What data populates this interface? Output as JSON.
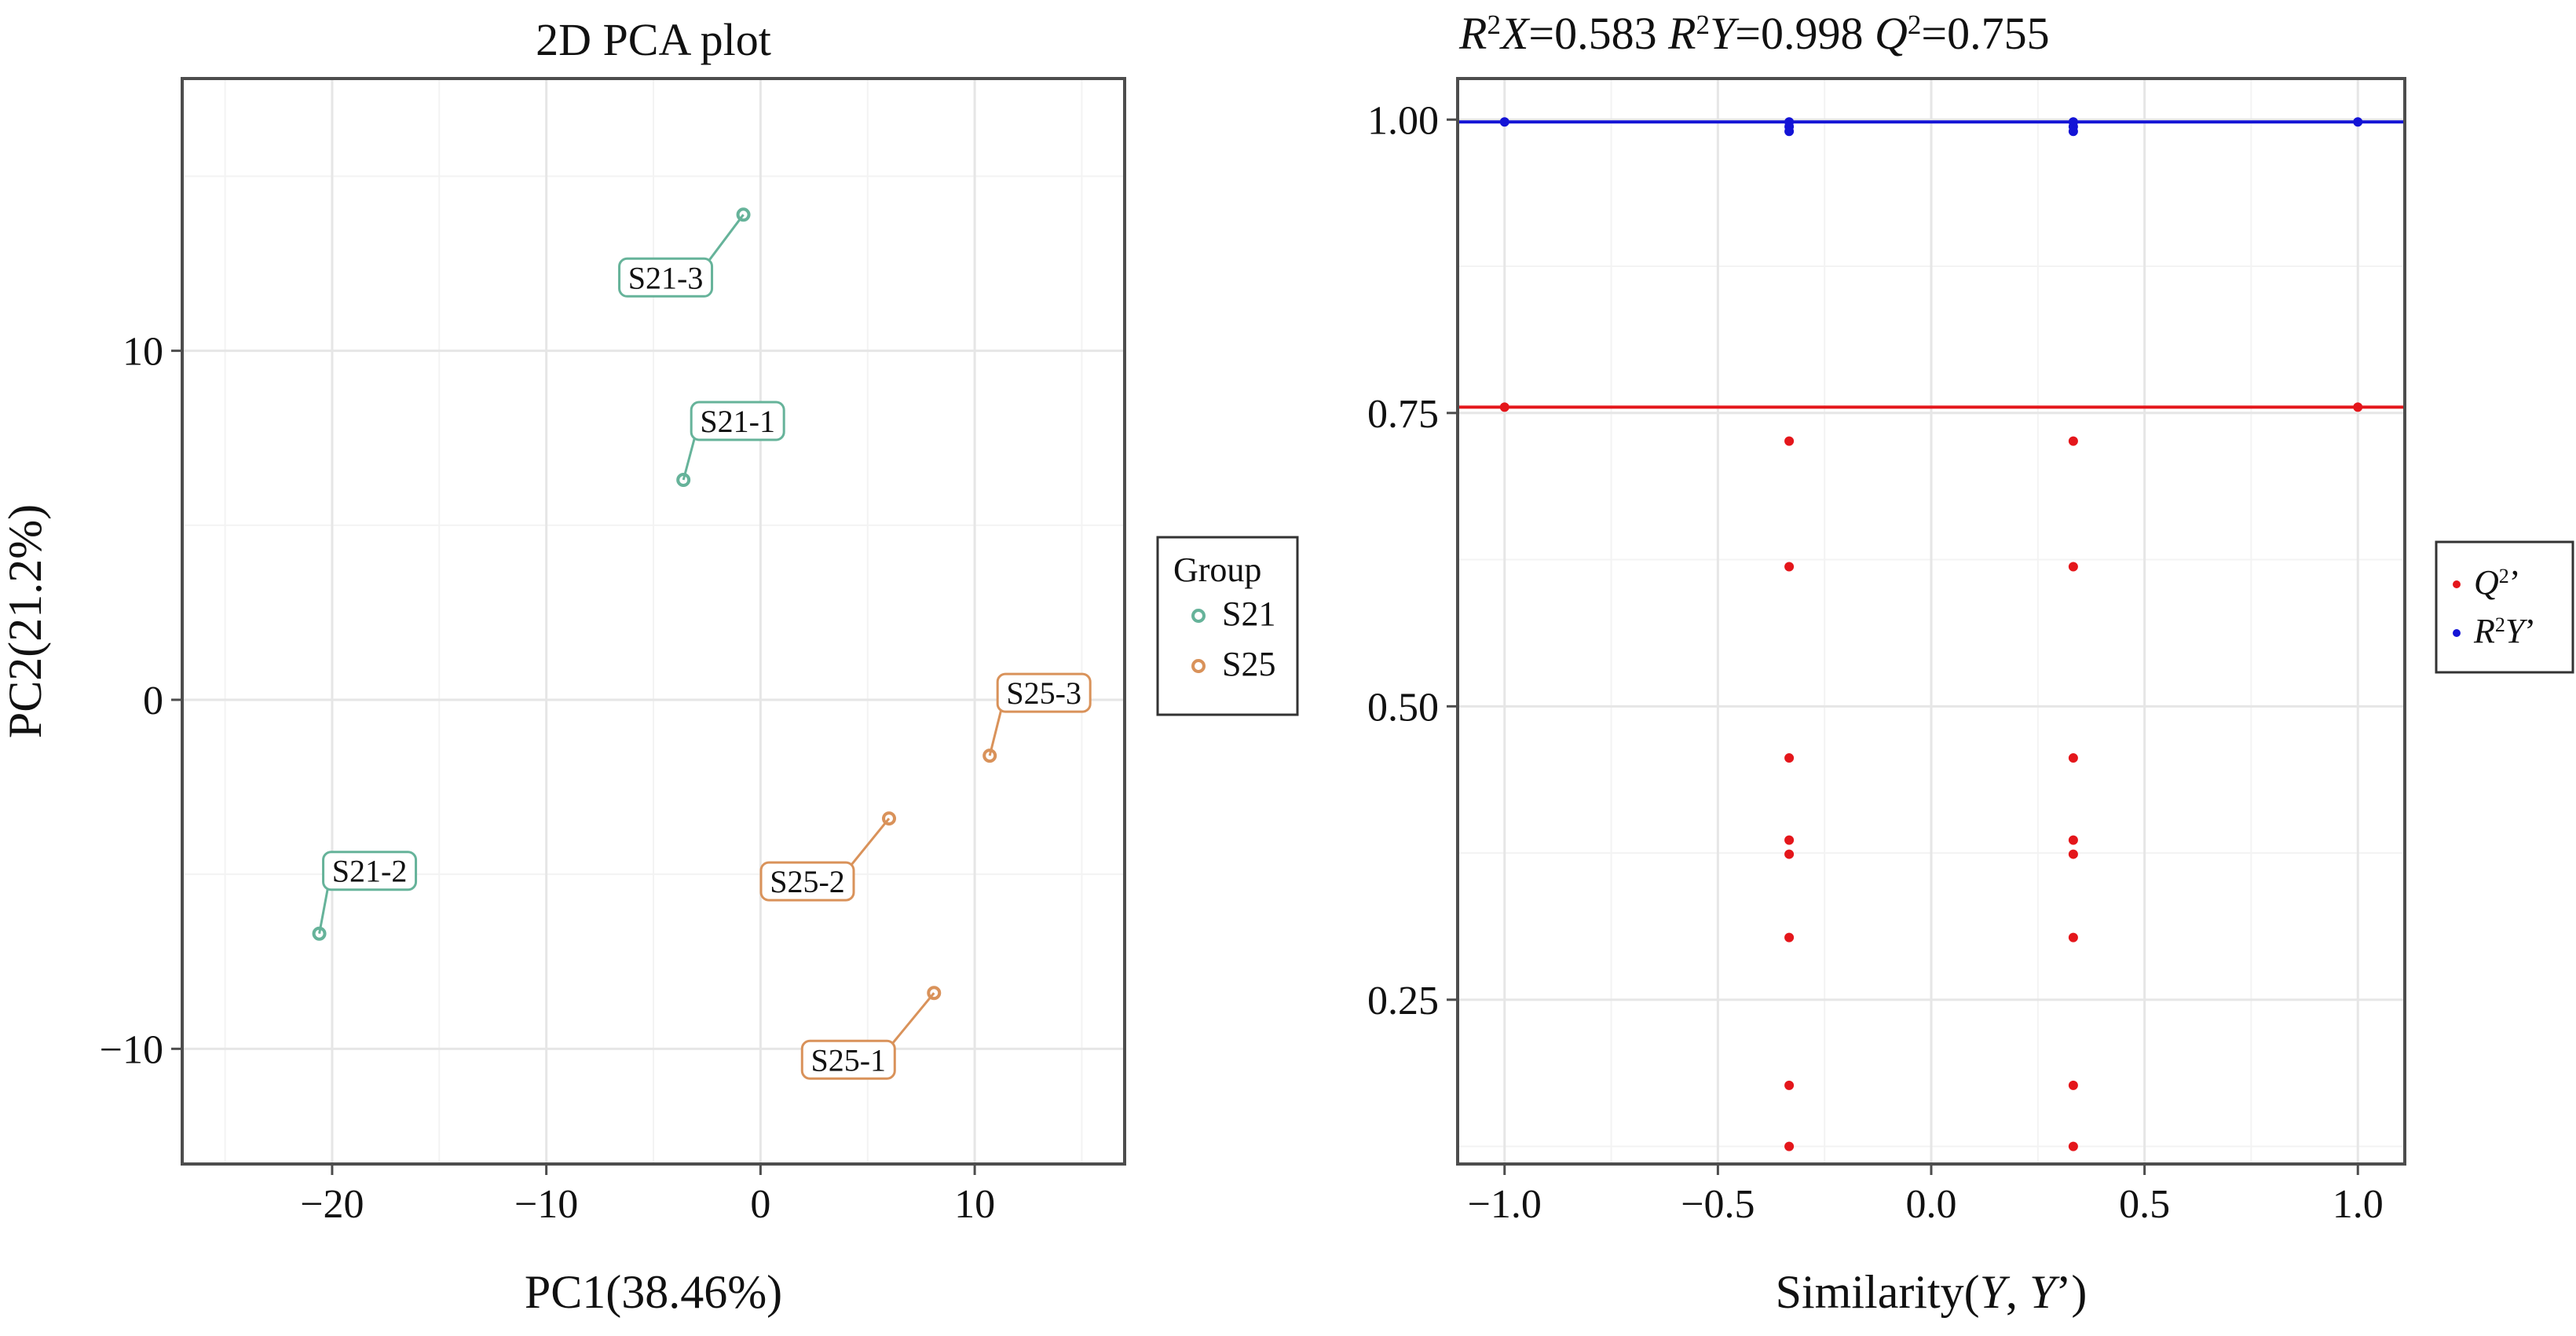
{
  "colors": {
    "s21": "#66b39a",
    "s25": "#d9925a",
    "q2": "#e4161b",
    "r2y": "#1414d6",
    "grid_major": "#e6e6e6",
    "grid_minor": "#f3f3f3",
    "frame": "#4d4d4d"
  },
  "chart_data": [
    {
      "type": "scatter",
      "title": "2D PCA plot",
      "xlabel": "PC1(38.46%)",
      "ylabel": "PC2(21.2%)",
      "xlim": [
        -27,
        17
      ],
      "ylim": [
        -13.3,
        17.8
      ],
      "xticks": [
        -20,
        -10,
        0,
        10
      ],
      "xtick_labels": [
        "−20",
        "−10",
        "0",
        "10"
      ],
      "yticks": [
        -10,
        0,
        10
      ],
      "ytick_labels": [
        "−10",
        "0",
        "10"
      ],
      "grid": true,
      "legend": {
        "title": "Group",
        "position": "right",
        "entries": [
          {
            "name": "S21",
            "color": "#66b39a"
          },
          {
            "name": "S25",
            "color": "#d9925a"
          }
        ]
      },
      "series": [
        {
          "name": "S21",
          "points": [
            {
              "label": "S21-3",
              "x": -0.8,
              "y": 13.9
            },
            {
              "label": "S21-1",
              "x": -3.6,
              "y": 6.3
            },
            {
              "label": "S21-2",
              "x": -20.6,
              "y": -6.7
            }
          ]
        },
        {
          "name": "S25",
          "points": [
            {
              "label": "S25-3",
              "x": 10.7,
              "y": -1.6
            },
            {
              "label": "S25-2",
              "x": 6.0,
              "y": -3.4
            },
            {
              "label": "S25-1",
              "x": 8.1,
              "y": -8.4
            }
          ]
        }
      ]
    },
    {
      "type": "scatter",
      "title": "R²X=0.583 R²Y=0.998 Q²=0.755",
      "title_parts": [
        {
          "text": "R",
          "italic": true
        },
        {
          "text": "2",
          "sup": true
        },
        {
          "text": "X",
          "italic": true
        },
        {
          "text": "=0.583 "
        },
        {
          "text": "R",
          "italic": true
        },
        {
          "text": "2",
          "sup": true
        },
        {
          "text": "Y",
          "italic": true
        },
        {
          "text": "=0.998 "
        },
        {
          "text": "Q",
          "italic": true
        },
        {
          "text": "2",
          "sup": true
        },
        {
          "text": "=0.755"
        }
      ],
      "xlabel": "Similarity(Y, Y’)",
      "xlabel_parts": [
        {
          "text": "Similarity("
        },
        {
          "text": "Y",
          "italic": true
        },
        {
          "text": ", "
        },
        {
          "text": "Y",
          "italic": true
        },
        {
          "text": "’)"
        }
      ],
      "ylabel": "",
      "xlim": [
        -1.11,
        1.11
      ],
      "ylim": [
        0.11,
        1.035
      ],
      "xticks": [
        -1.0,
        -0.5,
        0.0,
        0.5,
        1.0
      ],
      "xtick_labels": [
        "−1.0",
        "−0.5",
        "0.0",
        "0.5",
        "1.0"
      ],
      "yticks": [
        0.25,
        0.5,
        0.75,
        1.0
      ],
      "ytick_labels": [
        "0.25",
        "0.50",
        "0.75",
        "1.00"
      ],
      "grid": true,
      "hlines": [
        {
          "series": "R²Y’",
          "y": 0.998,
          "color": "#1414d6"
        },
        {
          "series": "Q²’",
          "y": 0.755,
          "color": "#e4161b"
        }
      ],
      "legend": {
        "position": "right",
        "entries": [
          {
            "name": "Q²’",
            "color": "#e4161b",
            "parts": [
              {
                "text": "Q",
                "italic": true
              },
              {
                "text": "2",
                "sup": true
              },
              {
                "text": "’"
              }
            ]
          },
          {
            "name": "R²Y’",
            "color": "#1414d6",
            "parts": [
              {
                "text": "R",
                "italic": true
              },
              {
                "text": "2",
                "sup": true
              },
              {
                "text": "Y",
                "italic": true
              },
              {
                "text": "’"
              }
            ]
          }
        ]
      },
      "series": [
        {
          "name": "Q²’",
          "points": [
            {
              "x": -1.0,
              "y": 0.755
            },
            {
              "x": 1.0,
              "y": 0.755
            },
            {
              "x": -0.333,
              "y": 0.726
            },
            {
              "x": -0.333,
              "y": 0.619
            },
            {
              "x": -0.333,
              "y": 0.456
            },
            {
              "x": -0.333,
              "y": 0.386
            },
            {
              "x": -0.333,
              "y": 0.374
            },
            {
              "x": -0.333,
              "y": 0.303
            },
            {
              "x": -0.333,
              "y": 0.177
            },
            {
              "x": -0.333,
              "y": 0.125
            },
            {
              "x": 0.333,
              "y": 0.726
            },
            {
              "x": 0.333,
              "y": 0.619
            },
            {
              "x": 0.333,
              "y": 0.456
            },
            {
              "x": 0.333,
              "y": 0.386
            },
            {
              "x": 0.333,
              "y": 0.374
            },
            {
              "x": 0.333,
              "y": 0.303
            },
            {
              "x": 0.333,
              "y": 0.177
            },
            {
              "x": 0.333,
              "y": 0.125
            }
          ]
        },
        {
          "name": "R²Y’",
          "points": [
            {
              "x": -1.0,
              "y": 0.998
            },
            {
              "x": 1.0,
              "y": 0.998
            },
            {
              "x": -0.333,
              "y": 0.998
            },
            {
              "x": -0.333,
              "y": 0.994
            },
            {
              "x": -0.333,
              "y": 0.99
            },
            {
              "x": 0.333,
              "y": 0.998
            },
            {
              "x": 0.333,
              "y": 0.994
            },
            {
              "x": 0.333,
              "y": 0.99
            }
          ]
        }
      ]
    }
  ]
}
